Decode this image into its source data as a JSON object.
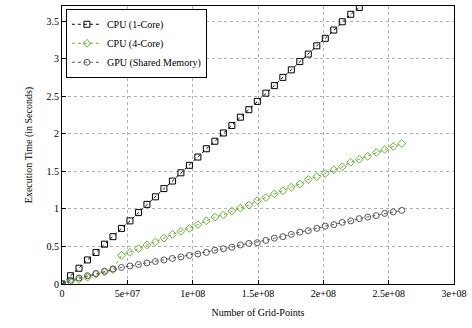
{
  "chart_data": {
    "type": "line",
    "x_label": "Number of Grid-Points",
    "y_label": "Execution Time (in Seconds)",
    "x": [
      0,
      6500000,
      13000000,
      19500000,
      26000000,
      32500000,
      39000000,
      45500000,
      52000000,
      58500000,
      65000000,
      71500000,
      78000000,
      84500000,
      91000000,
      97500000,
      104000000,
      110500000,
      117000000,
      123500000,
      130000000,
      136500000,
      143000000,
      149500000,
      156000000,
      162500000,
      169000000,
      175500000,
      182000000,
      188500000,
      195000000,
      201500000,
      208000000,
      214500000,
      221000000,
      227500000,
      234000000,
      240500000,
      247000000,
      253500000,
      260000000
    ],
    "series": [
      {
        "name": "CPU (1-Core)",
        "color": "#000000",
        "marker": "square",
        "line_style": "dotted",
        "values": [
          0,
          0.11,
          0.21,
          0.32,
          0.42,
          0.53,
          0.63,
          0.74,
          0.84,
          0.95,
          1.06,
          1.16,
          1.27,
          1.37,
          1.48,
          1.58,
          1.69,
          1.8,
          1.9,
          2.01,
          2.11,
          2.22,
          2.32,
          2.43,
          2.54,
          2.64,
          2.75,
          2.85,
          2.96,
          3.06,
          3.17,
          3.27,
          3.38,
          3.49,
          3.59,
          3.68,
          null,
          null,
          null,
          null,
          null
        ]
      },
      {
        "name": "CPU (4-Core)",
        "color": "#66b032",
        "marker": "diamond",
        "line_style": "dotted",
        "values": [
          0,
          0.03,
          0.06,
          0.09,
          0.13,
          0.16,
          0.19,
          0.38,
          0.42,
          0.47,
          0.52,
          0.56,
          0.61,
          0.66,
          0.7,
          0.74,
          0.79,
          0.84,
          0.89,
          0.92,
          0.97,
          1.01,
          1.05,
          1.11,
          1.15,
          1.2,
          1.24,
          1.29,
          1.33,
          1.39,
          1.43,
          1.47,
          1.52,
          1.56,
          1.62,
          1.66,
          1.7,
          1.75,
          1.79,
          1.83,
          1.87
        ]
      },
      {
        "name": "GPU (Shared Memory)",
        "color": "#555555",
        "marker": "circle",
        "line_style": "dotted",
        "values": [
          0,
          0.05,
          0.08,
          0.11,
          0.14,
          0.17,
          0.2,
          0.22,
          0.24,
          0.26,
          0.28,
          0.3,
          0.32,
          0.34,
          0.36,
          0.38,
          0.4,
          0.42,
          0.45,
          0.47,
          0.49,
          0.52,
          0.54,
          0.55,
          0.58,
          0.61,
          0.63,
          0.66,
          0.69,
          0.71,
          0.74,
          0.77,
          0.79,
          0.82,
          0.84,
          0.87,
          0.89,
          0.91,
          0.94,
          0.96,
          0.98
        ]
      }
    ],
    "xlim": [
      0,
      300000000
    ],
    "xticks": [
      0,
      {
        "value": 50000000,
        "label": "5e+07"
      },
      {
        "value": 100000000,
        "label": "1e+08"
      },
      {
        "value": 150000000,
        "label": "1.5e+08"
      },
      {
        "value": 200000000,
        "label": "2e+08"
      },
      {
        "value": 250000000,
        "label": "2.5e+08"
      },
      {
        "value": 300000000,
        "label": "3e+08"
      }
    ],
    "ylim": [
      0,
      3.7
    ],
    "yticks": [
      0,
      0.5,
      1,
      1.5,
      2,
      2.5,
      3,
      3.5
    ],
    "grid": true,
    "legend": "top-left"
  }
}
